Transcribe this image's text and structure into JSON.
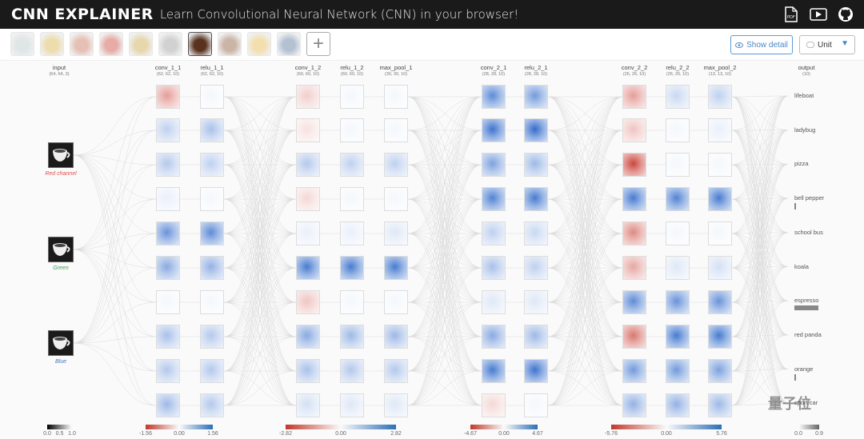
{
  "header": {
    "brand": "CNN EXPLAINER",
    "tagline": "Learn Convolutional Neural Network (CNN) in your browser!",
    "icons": [
      "pdf-icon",
      "video-icon",
      "github-icon"
    ]
  },
  "toolbar": {
    "thumbnails": [
      {
        "name": "lifeboat",
        "color": "#b9c8c8"
      },
      {
        "name": "ladybug",
        "color": "#d8b34a"
      },
      {
        "name": "pizza",
        "color": "#c8745a"
      },
      {
        "name": "bell pepper",
        "color": "#c9483a"
      },
      {
        "name": "school bus",
        "color": "#c8a84a"
      },
      {
        "name": "koala",
        "color": "#9a9a9a"
      },
      {
        "name": "espresso",
        "color": "#5a3220",
        "active": true
      },
      {
        "name": "red panda",
        "color": "#8a5a3a"
      },
      {
        "name": "orange",
        "color": "#e6b850"
      },
      {
        "name": "sport car",
        "color": "#5a78a0"
      }
    ],
    "add_icon": "+",
    "show_detail": "Show detail",
    "unit_select": "Unit"
  },
  "input_layer": {
    "title": "input",
    "dim": "(64, 64, 3)",
    "channels": [
      {
        "label": "Red channel",
        "color": "#e05050"
      },
      {
        "label": "Green",
        "color": "#3aa055"
      },
      {
        "label": "Blue",
        "color": "#3a78c8"
      }
    ],
    "legend": [
      "0.0",
      "0.5",
      "1.0"
    ]
  },
  "layers": [
    {
      "title": "conv_1_1",
      "dim": "(62, 62, 10)"
    },
    {
      "title": "relu_1_1",
      "dim": "(62, 62, 10)"
    },
    {
      "title": "conv_1_2",
      "dim": "(60, 60, 10)"
    },
    {
      "title": "relu_1_2",
      "dim": "(60, 60, 10)"
    },
    {
      "title": "max_pool_1",
      "dim": "(30, 30, 10)"
    },
    {
      "title": "conv_2_1",
      "dim": "(28, 28, 10)"
    },
    {
      "title": "relu_2_1",
      "dim": "(28, 28, 10)"
    },
    {
      "title": "conv_2_2",
      "dim": "(26, 26, 10)"
    },
    {
      "title": "relu_2_2",
      "dim": "(26, 26, 10)"
    },
    {
      "title": "max_pool_2",
      "dim": "(13, 13, 10)"
    }
  ],
  "output_layer": {
    "title": "output",
    "dim": "(10)",
    "classes": [
      {
        "label": "lifeboat",
        "prob": 0.0
      },
      {
        "label": "ladybug",
        "prob": 0.0
      },
      {
        "label": "pizza",
        "prob": 0.0
      },
      {
        "label": "bell pepper",
        "prob": 0.01
      },
      {
        "label": "school bus",
        "prob": 0.0
      },
      {
        "label": "koala",
        "prob": 0.0
      },
      {
        "label": "espresso",
        "prob": 0.9
      },
      {
        "label": "red panda",
        "prob": 0.0
      },
      {
        "label": "orange",
        "prob": 0.02
      },
      {
        "label": "sport car",
        "prob": 0.0
      }
    ],
    "legend": [
      "0.0",
      "0.9"
    ]
  },
  "legends": [
    {
      "min": "-1.56",
      "mid": "0.00",
      "max": "1.56"
    },
    {
      "min": "-2.82",
      "mid": "0.00",
      "max": "2.82"
    },
    {
      "min": "-4.67",
      "mid": "0.00",
      "max": "4.67"
    },
    {
      "min": "-5.76",
      "mid": "0.00",
      "max": "5.76"
    }
  ],
  "activations": [
    [
      -0.5,
      0.3,
      0.35,
      0.1,
      0.7,
      0.55,
      0.05,
      0.4,
      0.35,
      0.45
    ],
    [
      0.05,
      0.4,
      0.3,
      0.05,
      0.75,
      0.5,
      0.05,
      0.35,
      0.35,
      0.35
    ],
    [
      -0.25,
      -0.15,
      0.35,
      -0.2,
      0.1,
      0.85,
      -0.3,
      0.55,
      0.4,
      0.2
    ],
    [
      0.05,
      0.05,
      0.3,
      0.05,
      0.1,
      0.85,
      0.05,
      0.45,
      0.35,
      0.15
    ],
    [
      0.05,
      0.05,
      0.3,
      0.05,
      0.15,
      0.85,
      0.05,
      0.45,
      0.35,
      0.15
    ],
    [
      0.75,
      0.9,
      0.6,
      0.8,
      0.3,
      0.4,
      0.15,
      0.55,
      0.85,
      -0.2
    ],
    [
      0.65,
      0.95,
      0.45,
      0.85,
      0.25,
      0.3,
      0.15,
      0.45,
      0.9,
      0.05
    ],
    [
      -0.5,
      -0.3,
      -0.95,
      0.85,
      -0.6,
      -0.45,
      0.75,
      -0.7,
      0.65,
      0.5
    ],
    [
      0.25,
      0.05,
      0.05,
      0.8,
      0.05,
      0.15,
      0.7,
      0.85,
      0.65,
      0.5
    ],
    [
      0.3,
      0.1,
      0.05,
      0.85,
      0.05,
      0.2,
      0.7,
      0.85,
      0.6,
      0.45
    ]
  ],
  "watermark": "量子位"
}
